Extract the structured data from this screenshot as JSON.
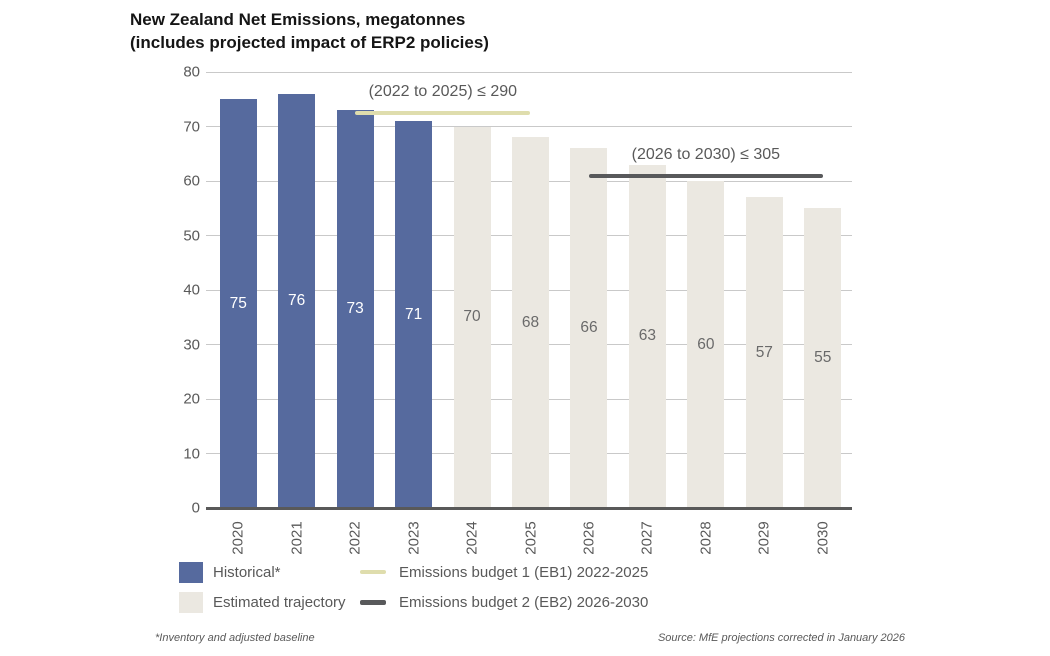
{
  "title": {
    "line1": "New Zealand Net Emissions, megatonnes",
    "line2": "(includes projected impact of ERP2 policies)"
  },
  "chart_data": {
    "type": "bar",
    "title": "New Zealand Net Emissions, megatonnes (includes projected impact of ERP2 policies)",
    "categories": [
      "2020",
      "2021",
      "2022",
      "2023",
      "2024",
      "2025",
      "2026",
      "2027",
      "2028",
      "2029",
      "2030"
    ],
    "series": [
      {
        "name": "Historical*",
        "color": "#566A9E",
        "label_color": "#ffffff",
        "values": [
          75,
          76,
          73,
          71,
          null,
          null,
          null,
          null,
          null,
          null,
          null
        ]
      },
      {
        "name": "Estimated trajectory",
        "color": "#EBE8E1",
        "label_color": "#6a6a6a",
        "values": [
          null,
          null,
          null,
          null,
          70,
          68,
          66,
          63,
          60,
          57,
          55
        ]
      }
    ],
    "ylim": [
      0,
      80
    ],
    "yticks": [
      0,
      10,
      20,
      30,
      40,
      50,
      60,
      70,
      80
    ],
    "grid": true,
    "legend_position": "bottom",
    "budget_lines": [
      {
        "name": "Emissions budget 1 (EB1) 2022-2025",
        "annotation": "(2022 to 2025) ≤ 290",
        "annual_level": 72.5,
        "from": "2022",
        "to": "2025",
        "color": "#DFDDAD",
        "thickness": 4
      },
      {
        "name": "Emissions budget 2 (EB2) 2026-2030",
        "annotation": "(2026 to 2030) ≤ 305",
        "annual_level": 61,
        "from": "2026",
        "to": "2030",
        "color": "#58595B",
        "thickness": 4
      }
    ]
  },
  "legend": {
    "items": [
      {
        "swatch": "square",
        "color": "#566A9E",
        "label": "Historical*"
      },
      {
        "swatch": "square",
        "color": "#EBE8E1",
        "label": "Estimated trajectory"
      },
      {
        "swatch": "line",
        "color": "#DFDDAD",
        "thickness": 4,
        "label": "Emissions budget 1 (EB1) 2022-2025"
      },
      {
        "swatch": "line",
        "color": "#58595B",
        "thickness": 5,
        "label": "Emissions budget 2 (EB2) 2026-2030"
      }
    ]
  },
  "footnotes": {
    "left": "*Inventory and adjusted baseline",
    "right": "Source: MfE projections corrected in January 2026"
  }
}
